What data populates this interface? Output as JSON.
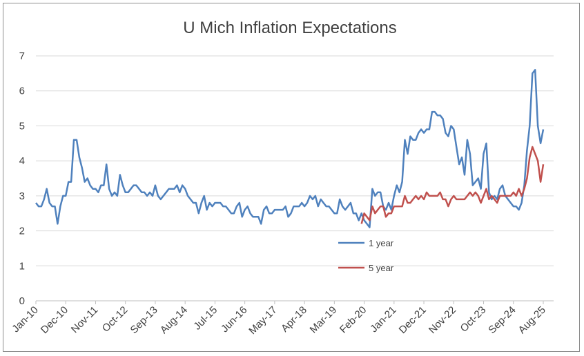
{
  "chart_data": {
    "type": "line",
    "title": "U Mich Inflation Expectations",
    "xlabel": "",
    "ylabel": "",
    "ylim": [
      0,
      7
    ],
    "yticks": [
      0,
      1,
      2,
      3,
      4,
      5,
      6,
      7
    ],
    "grid": "horizontal",
    "legend_position": "inside-center-right",
    "xtick_labels": [
      "Jan-10",
      "Dec-10",
      "Nov-11",
      "Oct-12",
      "Sep-13",
      "Aug-14",
      "Jul-15",
      "Jun-16",
      "May-17",
      "Apr-18",
      "Mar-19",
      "Feb-20",
      "Jan-21",
      "Dec-21",
      "Nov-22",
      "Oct-23",
      "Sep-24",
      "Aug-25"
    ],
    "x_unit": "months since Jan-10",
    "series": [
      {
        "name": "1 year",
        "color": "#4f81bd",
        "points": [
          [
            0,
            2.8
          ],
          [
            1,
            2.7
          ],
          [
            2,
            2.7
          ],
          [
            3,
            2.9
          ],
          [
            4,
            3.2
          ],
          [
            5,
            2.8
          ],
          [
            6,
            2.7
          ],
          [
            7,
            2.7
          ],
          [
            8,
            2.2
          ],
          [
            9,
            2.7
          ],
          [
            10,
            3.0
          ],
          [
            11,
            3.0
          ],
          [
            12,
            3.4
          ],
          [
            13,
            3.4
          ],
          [
            14,
            4.6
          ],
          [
            15,
            4.6
          ],
          [
            16,
            4.1
          ],
          [
            17,
            3.8
          ],
          [
            18,
            3.4
          ],
          [
            19,
            3.5
          ],
          [
            20,
            3.3
          ],
          [
            21,
            3.2
          ],
          [
            22,
            3.2
          ],
          [
            23,
            3.1
          ],
          [
            24,
            3.3
          ],
          [
            25,
            3.3
          ],
          [
            26,
            3.9
          ],
          [
            27,
            3.2
          ],
          [
            28,
            3.0
          ],
          [
            29,
            3.1
          ],
          [
            30,
            3.0
          ],
          [
            31,
            3.6
          ],
          [
            32,
            3.3
          ],
          [
            33,
            3.1
          ],
          [
            34,
            3.1
          ],
          [
            35,
            3.2
          ],
          [
            36,
            3.3
          ],
          [
            37,
            3.3
          ],
          [
            38,
            3.2
          ],
          [
            39,
            3.1
          ],
          [
            40,
            3.1
          ],
          [
            41,
            3.0
          ],
          [
            42,
            3.1
          ],
          [
            43,
            3.0
          ],
          [
            44,
            3.3
          ],
          [
            45,
            3.0
          ],
          [
            46,
            2.9
          ],
          [
            47,
            3.0
          ],
          [
            48,
            3.1
          ],
          [
            49,
            3.2
          ],
          [
            50,
            3.2
          ],
          [
            51,
            3.2
          ],
          [
            52,
            3.3
          ],
          [
            53,
            3.1
          ],
          [
            54,
            3.3
          ],
          [
            55,
            3.2
          ],
          [
            56,
            3.0
          ],
          [
            57,
            2.9
          ],
          [
            58,
            2.8
          ],
          [
            59,
            2.8
          ],
          [
            60,
            2.5
          ],
          [
            61,
            2.8
          ],
          [
            62,
            3.0
          ],
          [
            63,
            2.6
          ],
          [
            64,
            2.8
          ],
          [
            65,
            2.7
          ],
          [
            66,
            2.8
          ],
          [
            67,
            2.8
          ],
          [
            68,
            2.8
          ],
          [
            69,
            2.7
          ],
          [
            70,
            2.7
          ],
          [
            71,
            2.6
          ],
          [
            72,
            2.5
          ],
          [
            73,
            2.5
          ],
          [
            74,
            2.7
          ],
          [
            75,
            2.8
          ],
          [
            76,
            2.4
          ],
          [
            77,
            2.6
          ],
          [
            78,
            2.7
          ],
          [
            79,
            2.5
          ],
          [
            80,
            2.4
          ],
          [
            81,
            2.4
          ],
          [
            82,
            2.4
          ],
          [
            83,
            2.2
          ],
          [
            84,
            2.6
          ],
          [
            85,
            2.7
          ],
          [
            86,
            2.5
          ],
          [
            87,
            2.5
          ],
          [
            88,
            2.6
          ],
          [
            89,
            2.6
          ],
          [
            90,
            2.6
          ],
          [
            91,
            2.6
          ],
          [
            92,
            2.7
          ],
          [
            93,
            2.4
          ],
          [
            94,
            2.5
          ],
          [
            95,
            2.7
          ],
          [
            96,
            2.7
          ],
          [
            97,
            2.7
          ],
          [
            98,
            2.8
          ],
          [
            99,
            2.7
          ],
          [
            100,
            2.8
          ],
          [
            101,
            3.0
          ],
          [
            102,
            2.9
          ],
          [
            103,
            3.0
          ],
          [
            104,
            2.7
          ],
          [
            105,
            2.9
          ],
          [
            106,
            2.8
          ],
          [
            107,
            2.7
          ],
          [
            108,
            2.7
          ],
          [
            109,
            2.6
          ],
          [
            110,
            2.5
          ],
          [
            111,
            2.5
          ],
          [
            112,
            2.9
          ],
          [
            113,
            2.7
          ],
          [
            114,
            2.6
          ],
          [
            115,
            2.7
          ],
          [
            116,
            2.8
          ],
          [
            117,
            2.5
          ],
          [
            118,
            2.5
          ],
          [
            119,
            2.3
          ],
          [
            120,
            2.5
          ],
          [
            121,
            2.3
          ],
          [
            122,
            2.2
          ],
          [
            123,
            2.1
          ],
          [
            124,
            3.2
          ],
          [
            125,
            3.0
          ],
          [
            126,
            3.1
          ],
          [
            127,
            3.1
          ],
          [
            128,
            2.7
          ],
          [
            129,
            2.6
          ],
          [
            130,
            2.8
          ],
          [
            131,
            2.6
          ],
          [
            132,
            3.0
          ],
          [
            133,
            3.3
          ],
          [
            134,
            3.1
          ],
          [
            135,
            3.4
          ],
          [
            136,
            4.6
          ],
          [
            137,
            4.2
          ],
          [
            138,
            4.7
          ],
          [
            139,
            4.6
          ],
          [
            140,
            4.6
          ],
          [
            141,
            4.8
          ],
          [
            142,
            4.9
          ],
          [
            143,
            4.8
          ],
          [
            144,
            4.9
          ],
          [
            145,
            4.9
          ],
          [
            146,
            5.4
          ],
          [
            147,
            5.4
          ],
          [
            148,
            5.3
          ],
          [
            149,
            5.3
          ],
          [
            150,
            5.2
          ],
          [
            151,
            4.8
          ],
          [
            152,
            4.7
          ],
          [
            153,
            5.0
          ],
          [
            154,
            4.9
          ],
          [
            155,
            4.4
          ],
          [
            156,
            3.9
          ],
          [
            157,
            4.1
          ],
          [
            158,
            3.6
          ],
          [
            159,
            4.6
          ],
          [
            160,
            4.2
          ],
          [
            161,
            3.3
          ],
          [
            162,
            3.4
          ],
          [
            163,
            3.5
          ],
          [
            164,
            3.2
          ],
          [
            165,
            4.2
          ],
          [
            166,
            4.5
          ],
          [
            167,
            3.1
          ],
          [
            168,
            2.9
          ],
          [
            169,
            3.0
          ],
          [
            170,
            2.9
          ],
          [
            171,
            3.2
          ],
          [
            172,
            3.3
          ],
          [
            173,
            3.0
          ],
          [
            174,
            2.9
          ],
          [
            175,
            2.8
          ],
          [
            176,
            2.7
          ],
          [
            177,
            2.7
          ],
          [
            178,
            2.6
          ],
          [
            179,
            2.8
          ],
          [
            180,
            3.3
          ],
          [
            181,
            4.3
          ],
          [
            182,
            5.0
          ],
          [
            183,
            6.5
          ],
          [
            184,
            6.6
          ],
          [
            185,
            5.0
          ],
          [
            186,
            4.5
          ],
          [
            187,
            4.9
          ]
        ]
      },
      {
        "name": "5 year",
        "color": "#c0504d",
        "points": [
          [
            120,
            2.2
          ],
          [
            121,
            2.5
          ],
          [
            122,
            2.4
          ],
          [
            123,
            2.3
          ],
          [
            124,
            2.7
          ],
          [
            125,
            2.5
          ],
          [
            126,
            2.6
          ],
          [
            127,
            2.7
          ],
          [
            128,
            2.7
          ],
          [
            129,
            2.4
          ],
          [
            130,
            2.5
          ],
          [
            131,
            2.5
          ],
          [
            132,
            2.7
          ],
          [
            133,
            2.7
          ],
          [
            134,
            2.7
          ],
          [
            135,
            2.7
          ],
          [
            136,
            3.0
          ],
          [
            137,
            2.8
          ],
          [
            138,
            2.8
          ],
          [
            139,
            2.9
          ],
          [
            140,
            3.0
          ],
          [
            141,
            2.9
          ],
          [
            142,
            3.0
          ],
          [
            143,
            2.9
          ],
          [
            144,
            3.1
          ],
          [
            145,
            3.0
          ],
          [
            146,
            3.0
          ],
          [
            147,
            3.0
          ],
          [
            148,
            3.0
          ],
          [
            149,
            3.1
          ],
          [
            150,
            2.9
          ],
          [
            151,
            2.9
          ],
          [
            152,
            2.7
          ],
          [
            153,
            2.9
          ],
          [
            154,
            3.0
          ],
          [
            155,
            2.9
          ],
          [
            156,
            2.9
          ],
          [
            157,
            2.9
          ],
          [
            158,
            2.9
          ],
          [
            159,
            3.0
          ],
          [
            160,
            3.1
          ],
          [
            161,
            3.0
          ],
          [
            162,
            3.1
          ],
          [
            163,
            3.0
          ],
          [
            164,
            2.8
          ],
          [
            165,
            3.0
          ],
          [
            166,
            3.2
          ],
          [
            167,
            2.9
          ],
          [
            168,
            3.0
          ],
          [
            169,
            2.9
          ],
          [
            170,
            2.8
          ],
          [
            171,
            3.0
          ],
          [
            172,
            3.0
          ],
          [
            173,
            3.0
          ],
          [
            174,
            3.0
          ],
          [
            175,
            3.0
          ],
          [
            176,
            3.1
          ],
          [
            177,
            3.0
          ],
          [
            178,
            3.2
          ],
          [
            179,
            3.0
          ],
          [
            180,
            3.2
          ],
          [
            181,
            3.5
          ],
          [
            182,
            4.1
          ],
          [
            183,
            4.4
          ],
          [
            184,
            4.2
          ],
          [
            185,
            4.0
          ],
          [
            186,
            3.4
          ],
          [
            187,
            3.9
          ]
        ]
      }
    ]
  }
}
